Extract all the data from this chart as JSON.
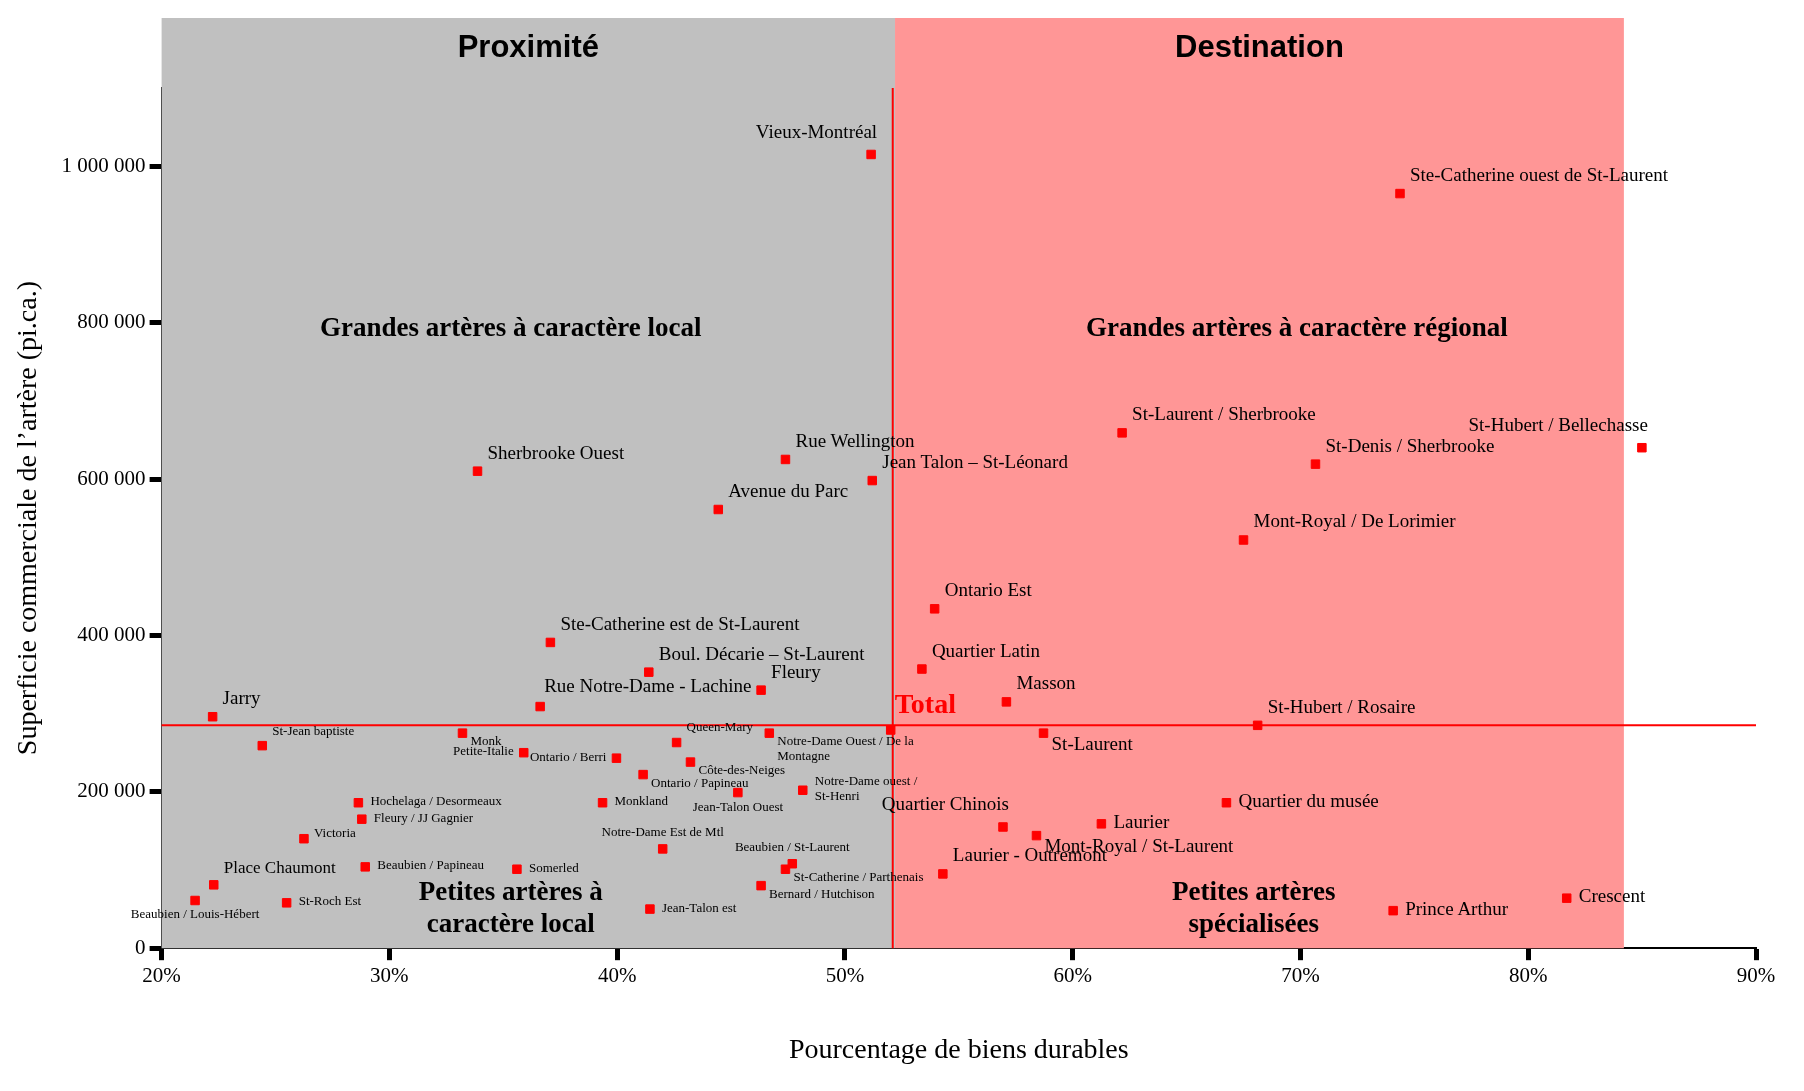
{
  "chart_data": {
    "type": "scatter",
    "xlabel": "Pourcentage de biens durables",
    "ylabel": "Superficie commerciale de l’artère (pi.ca.)",
    "xlim": [
      20,
      90
    ],
    "xticks": [
      {
        "value": 20,
        "label": "20%"
      },
      {
        "value": 30,
        "label": "30%"
      },
      {
        "value": 40,
        "label": "40%"
      },
      {
        "value": 50,
        "label": "50%"
      },
      {
        "value": 60,
        "label": "60%"
      },
      {
        "value": 70,
        "label": "70%"
      },
      {
        "value": 80,
        "label": "80%"
      },
      {
        "value": 90,
        "label": "90%"
      }
    ],
    "ylim": [
      0,
      1100000
    ],
    "yticks": [
      0,
      {
        "value": 200000,
        "label": "200 000"
      },
      {
        "value": 400000,
        "label": "400 000"
      },
      {
        "value": 600000,
        "label": "600 000"
      },
      {
        "value": 800000,
        "label": "800 000"
      },
      {
        "value": 1000000,
        "label": "1 000 000"
      }
    ],
    "grid": false,
    "legend": false,
    "marker": "square",
    "bands": [
      {
        "axis": "x",
        "from": 20,
        "to": 52.2,
        "label": "Proximité",
        "color": "#c0c0c0"
      },
      {
        "axis": "x",
        "from": 52.2,
        "to": 84.2,
        "label": "Destination",
        "color": "#ff9696"
      }
    ],
    "ref_lines": [
      {
        "axis": "y",
        "value": 285000,
        "color": "#ff0000"
      },
      {
        "axis": "x",
        "value": 52.1,
        "color": "#ff0000"
      }
    ],
    "annotations": [
      "Grandes artères à caractère local",
      "Grandes artères à caractère régional",
      "Petites artères à caractère local",
      "Petites artères spécialisées"
    ],
    "series": [
      {
        "name": "Vieux-Montréal",
        "color": "#ff0000",
        "x": [
          51.15
        ],
        "values": [
          1015000
        ]
      },
      {
        "name": "Ste-Catherine ouest de St-Laurent",
        "color": "#ff0000",
        "x": [
          74.37
        ],
        "values": [
          965000
        ]
      },
      {
        "name": "Sherbrooke Ouest",
        "color": "#ff0000",
        "x": [
          33.87
        ],
        "values": [
          610000
        ]
      },
      {
        "name": "Rue Wellington",
        "color": "#ff0000",
        "x": [
          47.39
        ],
        "values": [
          625000
        ]
      },
      {
        "name": "Jean Talon – St-Léonard",
        "color": "#ff0000",
        "x": [
          51.2
        ],
        "values": [
          598000
        ]
      },
      {
        "name": "Avenue du Parc",
        "color": "#ff0000",
        "x": [
          44.44
        ],
        "values": [
          561000
        ]
      },
      {
        "name": "St-Laurent / Sherbrooke",
        "color": "#ff0000",
        "x": [
          62.17
        ],
        "values": [
          659000
        ]
      },
      {
        "name": "St-Denis / Sherbrooke",
        "color": "#ff0000",
        "x": [
          70.66
        ],
        "values": [
          619000
        ]
      },
      {
        "name": "St-Hubert / Bellechasse",
        "color": "#ff0000",
        "x": [
          84.99
        ],
        "values": [
          640000
        ]
      },
      {
        "name": "Mont-Royal / De Lorimier",
        "color": "#ff0000",
        "x": [
          67.5
        ],
        "values": [
          522000
        ]
      },
      {
        "name": "Ontario Est",
        "color": "#ff0000",
        "x": [
          53.94
        ],
        "values": [
          434000
        ]
      },
      {
        "name": "Quartier Latin",
        "color": "#ff0000",
        "x": [
          53.38
        ],
        "values": [
          357000
        ]
      },
      {
        "name": "Masson",
        "color": "#ff0000",
        "x": [
          57.09
        ],
        "values": [
          315000
        ]
      },
      {
        "name": "Ste-Catherine est de St-Laurent",
        "color": "#ff0000",
        "x": [
          37.07
        ],
        "values": [
          391000
        ]
      },
      {
        "name": "Boul. Décarie – St-Laurent",
        "color": "#ff0000",
        "x": [
          41.39
        ],
        "values": [
          353000
        ]
      },
      {
        "name": "Fleury",
        "color": "#ff0000",
        "x": [
          46.32
        ],
        "values": [
          330000
        ]
      },
      {
        "name": "Rue Notre-Dame - Lachine",
        "color": "#ff0000",
        "x": [
          36.62
        ],
        "values": [
          309000
        ]
      },
      {
        "name": "Jarry",
        "color": "#ff0000",
        "x": [
          22.24
        ],
        "values": [
          296000
        ]
      },
      {
        "name": "Total",
        "color": "#ff0000",
        "x": [
          52.01
        ],
        "values": [
          279000
        ]
      },
      {
        "name": "St-Hubert / Rosaire",
        "color": "#ff0000",
        "x": [
          68.12
        ],
        "values": [
          285000
        ]
      },
      {
        "name": "St-Laurent",
        "color": "#ff0000",
        "x": [
          58.72
        ],
        "values": [
          275000
        ]
      },
      {
        "name": "St-Jean baptiste",
        "color": "#ff0000",
        "x": [
          24.42
        ],
        "values": [
          259000
        ]
      },
      {
        "name": "Monk",
        "color": "#ff0000",
        "x": [
          33.21
        ],
        "values": [
          275000
        ]
      },
      {
        "name": "Petite-Italie",
        "color": "#ff0000",
        "x": [
          35.9
        ],
        "values": [
          250000
        ]
      },
      {
        "name": "Ontario / Berri",
        "color": "#ff0000",
        "x": [
          39.97
        ],
        "values": [
          243000
        ]
      },
      {
        "name": "Queen-Mary",
        "color": "#ff0000",
        "x": [
          42.61
        ],
        "values": [
          263000
        ]
      },
      {
        "name": "Notre-Dame Ouest / De la Montagne",
        "color": "#ff0000",
        "x": [
          46.68
        ],
        "values": [
          275000
        ]
      },
      {
        "name": "Côte-des-Neiges",
        "color": "#ff0000",
        "x": [
          43.22
        ],
        "values": [
          238000
        ]
      },
      {
        "name": "Ontario / Papineau",
        "color": "#ff0000",
        "x": [
          41.14
        ],
        "values": [
          222000
        ]
      },
      {
        "name": "Jean-Talon Ouest",
        "color": "#ff0000",
        "x": [
          45.3
        ],
        "values": [
          199000
        ]
      },
      {
        "name": "Notre-Dame ouest / St-Henri",
        "color": "#ff0000",
        "x": [
          48.15
        ],
        "values": [
          202000
        ]
      },
      {
        "name": "Monkland",
        "color": "#ff0000",
        "x": [
          39.36
        ],
        "values": [
          186000
        ]
      },
      {
        "name": "Hochelaga / Desormeaux",
        "color": "#ff0000",
        "x": [
          28.64
        ],
        "values": [
          186000
        ]
      },
      {
        "name": "Fleury / JJ Gagnier",
        "color": "#ff0000",
        "x": [
          28.79
        ],
        "values": [
          165000
        ]
      },
      {
        "name": "Victoria",
        "color": "#ff0000",
        "x": [
          26.25
        ],
        "values": [
          140000
        ]
      },
      {
        "name": "Beaubien / Papineau",
        "color": "#ff0000",
        "x": [
          28.94
        ],
        "values": [
          104000
        ]
      },
      {
        "name": "Place Chaumont",
        "color": "#ff0000",
        "x": [
          22.29
        ],
        "values": [
          81000
        ]
      },
      {
        "name": "Beaubien / Louis-Hébert",
        "color": "#ff0000",
        "x": [
          21.47
        ],
        "values": [
          61000
        ]
      },
      {
        "name": "St-Roch Est",
        "color": "#ff0000",
        "x": [
          25.49
        ],
        "values": [
          58000
        ]
      },
      {
        "name": "Somerled",
        "color": "#ff0000",
        "x": [
          35.6
        ],
        "values": [
          101000
        ]
      },
      {
        "name": "Notre-Dame Est de Mtl",
        "color": "#ff0000",
        "x": [
          42.0
        ],
        "values": [
          127000
        ]
      },
      {
        "name": "Jean-Talon est",
        "color": "#ff0000",
        "x": [
          41.44
        ],
        "values": [
          50000
        ]
      },
      {
        "name": "Beaubien / St-Laurent",
        "color": "#ff0000",
        "x": [
          47.69
        ],
        "values": [
          108000
        ]
      },
      {
        "name": "St-Catherine / Parthenais",
        "color": "#ff0000",
        "x": [
          47.39
        ],
        "values": [
          101000
        ]
      },
      {
        "name": "Bernard / Hutchison",
        "color": "#ff0000",
        "x": [
          46.32
        ],
        "values": [
          80000
        ]
      },
      {
        "name": "Quartier Chinois",
        "color": "#ff0000",
        "x": [
          56.94
        ],
        "values": [
          155000
        ]
      },
      {
        "name": "Mont-Royal / St-Laurent",
        "color": "#ff0000",
        "x": [
          58.41
        ],
        "values": [
          144000
        ]
      },
      {
        "name": "Laurier",
        "color": "#ff0000",
        "x": [
          61.26
        ],
        "values": [
          159000
        ]
      },
      {
        "name": "Quartier du musée",
        "color": "#ff0000",
        "x": [
          66.75
        ],
        "values": [
          186000
        ]
      },
      {
        "name": "Laurier - Outremont",
        "color": "#ff0000",
        "x": [
          54.3
        ],
        "values": [
          95000
        ]
      },
      {
        "name": "Prince Arthur",
        "color": "#ff0000",
        "x": [
          74.07
        ],
        "values": [
          48000
        ]
      },
      {
        "name": "Crescent",
        "color": "#ff0000",
        "x": [
          81.69
        ],
        "values": [
          64000
        ]
      }
    ]
  }
}
